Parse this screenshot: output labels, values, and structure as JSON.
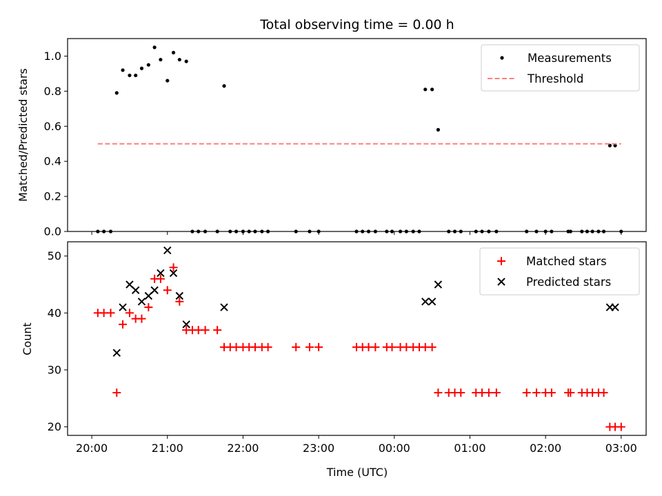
{
  "chart_data": [
    {
      "type": "scatter",
      "title": "Total observing time = 0.00 h",
      "xlabel": "",
      "ylabel": "Matched/Predicted stars",
      "ylim": [
        0,
        1.1
      ],
      "yticks": [
        "0.0",
        "0.2",
        "0.4",
        "0.6",
        "0.8",
        "1.0"
      ],
      "xlim_hours": [
        19.68,
        27.33
      ],
      "legend_position": "top-right",
      "series": [
        {
          "name": "Measurements",
          "marker": "dot",
          "color": "#000000",
          "x": [
            20.08,
            20.16,
            20.25,
            20.33,
            20.41,
            20.5,
            20.58,
            20.66,
            20.75,
            20.83,
            20.91,
            21.0,
            21.08,
            21.16,
            21.25,
            21.33,
            21.41,
            21.5,
            21.66,
            21.75,
            21.83,
            21.91,
            22.0,
            22.08,
            22.16,
            22.25,
            22.33,
            22.7,
            22.88,
            23.0,
            23.5,
            23.58,
            23.66,
            23.75,
            23.9,
            23.97,
            24.08,
            24.16,
            24.25,
            24.33,
            24.41,
            24.5,
            24.58,
            24.72,
            24.8,
            24.88,
            25.08,
            25.16,
            25.25,
            25.35,
            25.75,
            25.88,
            26.0,
            26.08,
            26.3,
            26.33,
            26.48,
            26.55,
            26.62,
            26.7,
            26.77,
            26.85,
            26.92,
            27.0
          ],
          "y": [
            0,
            0,
            0,
            0.79,
            0.92,
            0.89,
            0.89,
            0.93,
            0.95,
            1.05,
            0.98,
            0.86,
            1.02,
            0.98,
            0.97,
            0,
            0,
            0,
            0,
            0.83,
            0,
            0,
            0,
            0,
            0,
            0,
            0,
            0,
            0,
            0,
            0,
            0,
            0,
            0,
            0,
            0,
            0,
            0,
            0,
            0,
            0.81,
            0.81,
            0.58,
            0,
            0,
            0,
            0,
            0,
            0,
            0,
            0,
            0,
            0,
            0,
            0,
            0,
            0,
            0,
            0,
            0,
            0,
            0.49,
            0.49,
            0
          ]
        },
        {
          "name": "Threshold",
          "marker": "dashed-line",
          "color": "#ff7f7f",
          "x": [
            20.08,
            27.0
          ],
          "y": [
            0.5,
            0.5
          ]
        }
      ]
    },
    {
      "type": "scatter",
      "title": "",
      "xlabel": "Time (UTC)",
      "ylabel": "Count",
      "ylim": [
        18.5,
        52.5
      ],
      "yticks": [
        "20",
        "30",
        "40",
        "50"
      ],
      "xlim_hours": [
        19.68,
        27.33
      ],
      "xtick_hours": [
        20,
        21,
        22,
        23,
        24,
        25,
        26,
        27
      ],
      "xticks": [
        "20:00",
        "21:00",
        "22:00",
        "23:00",
        "00:00",
        "01:00",
        "02:00",
        "03:00"
      ],
      "legend_position": "top-right",
      "series": [
        {
          "name": "Matched stars",
          "marker": "plus",
          "color": "#ff0000",
          "x": [
            20.08,
            20.16,
            20.25,
            20.33,
            20.41,
            20.5,
            20.58,
            20.66,
            20.75,
            20.83,
            20.91,
            21.0,
            21.08,
            21.16,
            21.25,
            21.33,
            21.41,
            21.5,
            21.66,
            21.75,
            21.83,
            21.91,
            22.0,
            22.08,
            22.16,
            22.25,
            22.33,
            22.7,
            22.88,
            23.0,
            23.5,
            23.58,
            23.66,
            23.75,
            23.9,
            23.97,
            24.08,
            24.16,
            24.25,
            24.33,
            24.41,
            24.5,
            24.58,
            24.72,
            24.8,
            24.88,
            25.08,
            25.16,
            25.25,
            25.35,
            25.75,
            25.88,
            26.0,
            26.08,
            26.3,
            26.33,
            26.48,
            26.55,
            26.62,
            26.7,
            26.77,
            26.85,
            26.92,
            27.0
          ],
          "y": [
            40,
            40,
            40,
            26,
            38,
            40,
            39,
            39,
            41,
            46,
            46,
            44,
            48,
            42,
            37,
            37,
            37,
            37,
            37,
            34,
            34,
            34,
            34,
            34,
            34,
            34,
            34,
            34,
            34,
            34,
            34,
            34,
            34,
            34,
            34,
            34,
            34,
            34,
            34,
            34,
            34,
            34,
            26,
            26,
            26,
            26,
            26,
            26,
            26,
            26,
            26,
            26,
            26,
            26,
            26,
            26,
            26,
            26,
            26,
            26,
            26,
            20,
            20,
            20
          ]
        },
        {
          "name": "Predicted stars",
          "marker": "x",
          "color": "#000000",
          "x": [
            20.33,
            20.41,
            20.5,
            20.58,
            20.66,
            20.75,
            20.83,
            20.91,
            21.0,
            21.08,
            21.16,
            21.25,
            21.75,
            24.41,
            24.5,
            24.58,
            26.85,
            26.92
          ],
          "y": [
            33,
            41,
            45,
            44,
            42,
            43,
            44,
            47,
            51,
            47,
            43,
            38,
            41,
            42,
            42,
            45,
            41,
            41
          ]
        }
      ]
    }
  ]
}
